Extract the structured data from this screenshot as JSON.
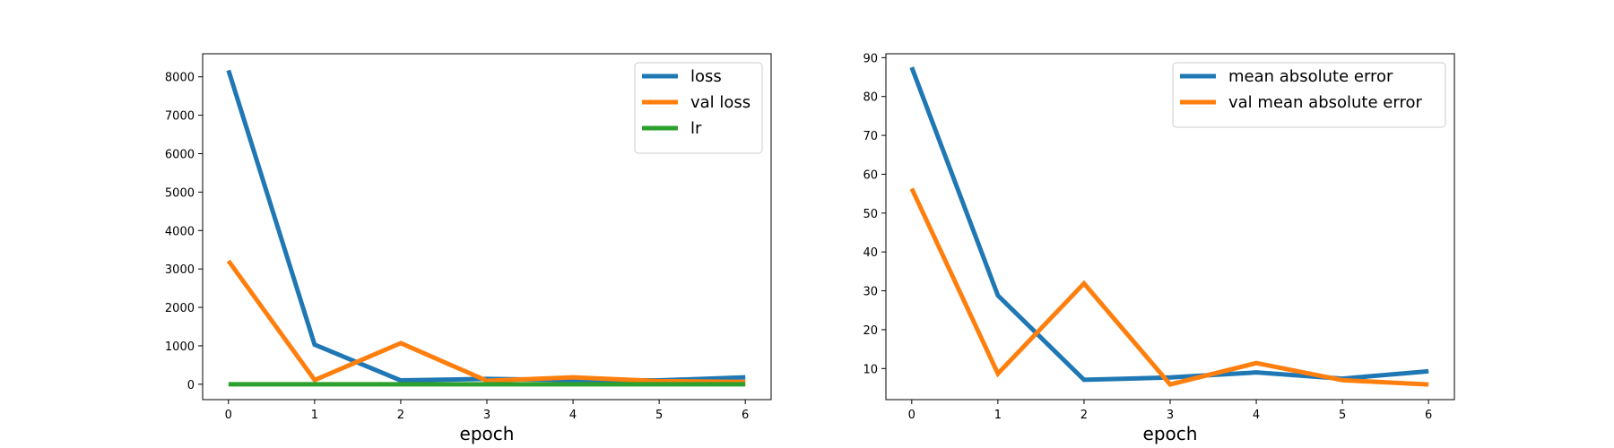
{
  "chart_data": [
    {
      "type": "line",
      "x": [
        0,
        1,
        2,
        3,
        4,
        5,
        6
      ],
      "xlabel": "epoch",
      "ylabel": "",
      "title": "",
      "xlim": [
        -0.3,
        6.3
      ],
      "ylim": [
        -400,
        8600
      ],
      "xticks": [
        0,
        1,
        2,
        3,
        4,
        5,
        6
      ],
      "yticks": [
        0,
        1000,
        2000,
        3000,
        4000,
        5000,
        6000,
        7000,
        8000
      ],
      "grid": false,
      "legend_position": "top-right",
      "series": [
        {
          "name": "loss",
          "color": "#1f77b4",
          "values": [
            8170,
            1030,
            100,
            140,
            110,
            100,
            180
          ]
        },
        {
          "name": "val loss",
          "color": "#ff7f0e",
          "values": [
            3210,
            110,
            1070,
            90,
            180,
            80,
            60
          ]
        },
        {
          "name": "lr",
          "color": "#2ca02c",
          "values": [
            0.001,
            0.001,
            0.001,
            0.001,
            0.001,
            0.001,
            0.001
          ]
        }
      ]
    },
    {
      "type": "line",
      "x": [
        0,
        1,
        2,
        3,
        4,
        5,
        6
      ],
      "xlabel": "epoch",
      "ylabel": "",
      "title": "",
      "xlim": [
        -0.3,
        6.3
      ],
      "ylim": [
        2,
        91
      ],
      "xticks": [
        0,
        1,
        2,
        3,
        4,
        5,
        6
      ],
      "yticks": [
        10,
        20,
        30,
        40,
        50,
        60,
        70,
        80,
        90
      ],
      "grid": false,
      "legend_position": "top-right",
      "series": [
        {
          "name": "mean absolute error",
          "color": "#1f77b4",
          "values": [
            87.5,
            28.8,
            7.1,
            7.7,
            9.0,
            7.4,
            9.3
          ]
        },
        {
          "name": "val mean absolute error",
          "color": "#ff7f0e",
          "values": [
            56.3,
            8.7,
            31.9,
            5.9,
            11.4,
            7.0,
            5.9
          ]
        }
      ]
    }
  ]
}
